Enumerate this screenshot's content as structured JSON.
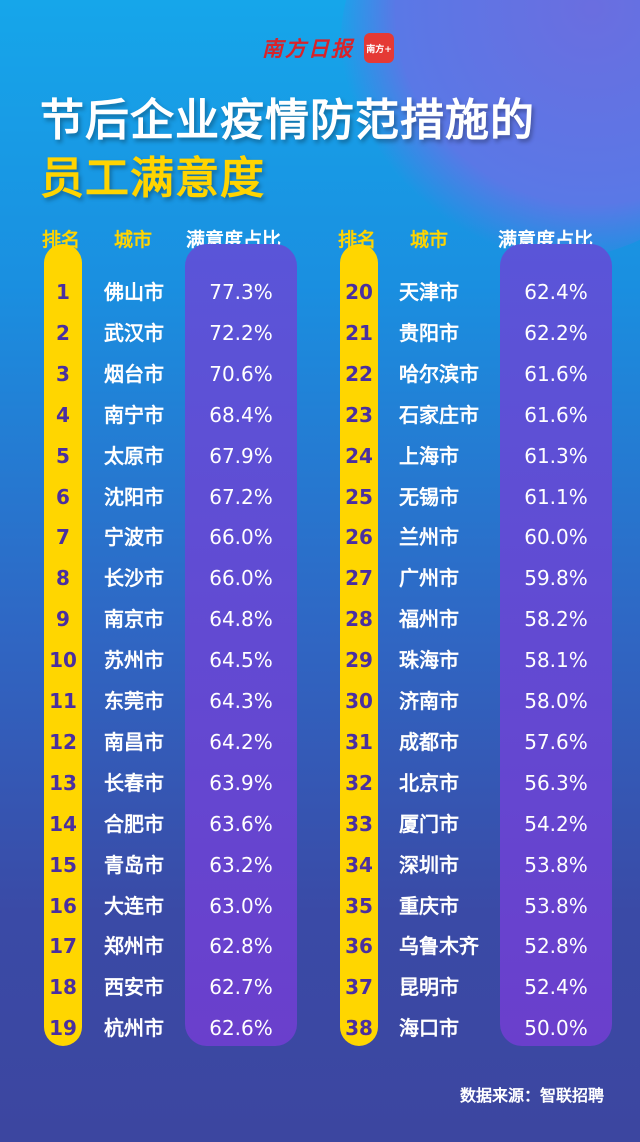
{
  "header": {
    "logo_text": "南方日报",
    "logo_badge": "南方+",
    "title_line1": "节后企业疫情防范措施的",
    "title_line2": "员工满意度"
  },
  "colors": {
    "accent_yellow": "#ffd600",
    "value_column": "#6a3fcc",
    "background_top": "#16a6ea",
    "background_bottom": "#3c46a0"
  },
  "chart_data": {
    "type": "table",
    "columns": [
      "排名",
      "城市",
      "满意度占比"
    ],
    "rows": [
      [
        1,
        "佛山市",
        "77.3%"
      ],
      [
        2,
        "武汉市",
        "72.2%"
      ],
      [
        3,
        "烟台市",
        "70.6%"
      ],
      [
        4,
        "南宁市",
        "68.4%"
      ],
      [
        5,
        "太原市",
        "67.9%"
      ],
      [
        6,
        "沈阳市",
        "67.2%"
      ],
      [
        7,
        "宁波市",
        "66.0%"
      ],
      [
        8,
        "长沙市",
        "66.0%"
      ],
      [
        9,
        "南京市",
        "64.8%"
      ],
      [
        10,
        "苏州市",
        "64.5%"
      ],
      [
        11,
        "东莞市",
        "64.3%"
      ],
      [
        12,
        "南昌市",
        "64.2%"
      ],
      [
        13,
        "长春市",
        "63.9%"
      ],
      [
        14,
        "合肥市",
        "63.6%"
      ],
      [
        15,
        "青岛市",
        "63.2%"
      ],
      [
        16,
        "大连市",
        "63.0%"
      ],
      [
        17,
        "郑州市",
        "62.8%"
      ],
      [
        18,
        "西安市",
        "62.7%"
      ],
      [
        19,
        "杭州市",
        "62.6%"
      ],
      [
        20,
        "天津市",
        "62.4%"
      ],
      [
        21,
        "贵阳市",
        "62.2%"
      ],
      [
        22,
        "哈尔滨市",
        "61.6%"
      ],
      [
        23,
        "石家庄市",
        "61.6%"
      ],
      [
        24,
        "上海市",
        "61.3%"
      ],
      [
        25,
        "无锡市",
        "61.1%"
      ],
      [
        26,
        "兰州市",
        "60.0%"
      ],
      [
        27,
        "广州市",
        "59.8%"
      ],
      [
        28,
        "福州市",
        "58.2%"
      ],
      [
        29,
        "珠海市",
        "58.1%"
      ],
      [
        30,
        "济南市",
        "58.0%"
      ],
      [
        31,
        "成都市",
        "57.6%"
      ],
      [
        32,
        "北京市",
        "56.3%"
      ],
      [
        33,
        "厦门市",
        "54.2%"
      ],
      [
        34,
        "深圳市",
        "53.8%"
      ],
      [
        35,
        "重庆市",
        "53.8%"
      ],
      [
        36,
        "乌鲁木齐",
        "52.8%"
      ],
      [
        37,
        "昆明市",
        "52.4%"
      ],
      [
        38,
        "海口市",
        "50.0%"
      ]
    ]
  },
  "footer": {
    "source": "数据来源：智联招聘"
  }
}
